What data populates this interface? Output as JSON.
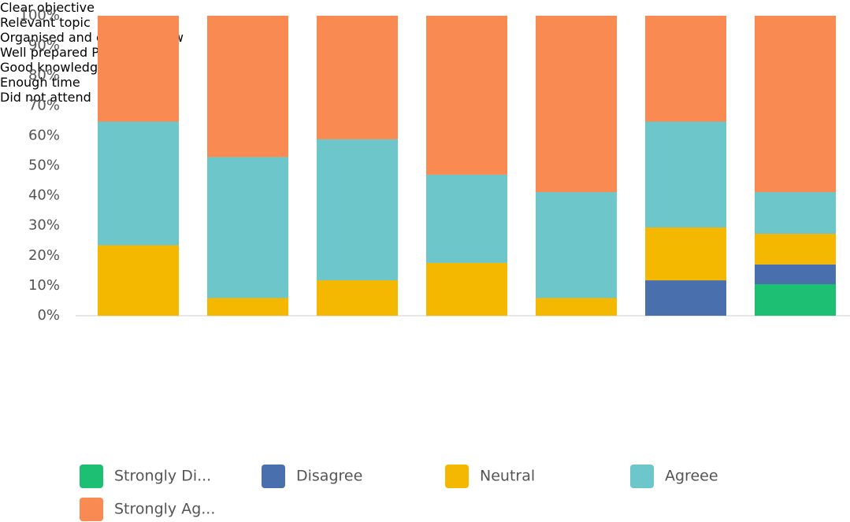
{
  "chart_data": {
    "type": "stacked_bar",
    "categories": [
      "Clear\nobjective",
      "Relevant\ntopic",
      "Organised\nand easy\nto follow",
      "Well\nprepared\nPP",
      "Good knowledge",
      "Enough\ntime",
      "Did not\nattend"
    ],
    "series": [
      {
        "name": "Strongly Di...",
        "color": "#1dbf73",
        "values": [
          0,
          0,
          0,
          0,
          0,
          0,
          10.5
        ]
      },
      {
        "name": "Disagree",
        "color": "#4a6fad",
        "values": [
          0,
          0,
          0,
          0,
          0,
          11.8,
          6.6
        ]
      },
      {
        "name": "Neutral",
        "color": "#f5b800",
        "values": [
          23.5,
          5.9,
          11.8,
          17.6,
          5.9,
          17.6,
          10.2
        ]
      },
      {
        "name": "Agreee",
        "color": "#6cc6ca",
        "values": [
          41.2,
          47.0,
          47.0,
          29.4,
          35.3,
          35.3,
          13.9
        ]
      },
      {
        "name": "Strongly Ag...",
        "color": "#f98b52",
        "values": [
          35.3,
          47.1,
          41.2,
          53.0,
          58.8,
          35.3,
          58.8
        ]
      }
    ],
    "ylim": [
      0,
      100
    ],
    "yticks": [
      {
        "value": 0,
        "label": "0%"
      },
      {
        "value": 10,
        "label": "10%"
      },
      {
        "value": 20,
        "label": "20%"
      },
      {
        "value": 30,
        "label": "30%"
      },
      {
        "value": 40,
        "label": "40%"
      },
      {
        "value": 50,
        "label": "50%"
      },
      {
        "value": 60,
        "label": "60%"
      },
      {
        "value": 70,
        "label": "70%"
      },
      {
        "value": 80,
        "label": "80%"
      },
      {
        "value": 90,
        "label": "90%"
      },
      {
        "value": 100,
        "label": "100%"
      }
    ],
    "legend": "bottom"
  }
}
